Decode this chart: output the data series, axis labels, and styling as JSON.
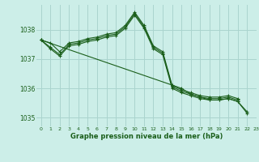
{
  "background_color": "#cceee8",
  "grid_color": "#aad4ce",
  "line_color": "#1a5e1a",
  "title": "Graphe pression niveau de la mer (hPa)",
  "xlim": [
    -0.5,
    23
  ],
  "ylim": [
    1034.7,
    1038.85
  ],
  "yticks": [
    1035,
    1036,
    1037,
    1038
  ],
  "xticks": [
    0,
    1,
    2,
    3,
    4,
    5,
    6,
    7,
    8,
    9,
    10,
    11,
    12,
    13,
    14,
    15,
    16,
    17,
    18,
    19,
    20,
    21,
    22,
    23
  ],
  "series": [
    [
      1037.65,
      1037.55,
      1037.25,
      1037.55,
      1037.6,
      1037.7,
      1037.75,
      1037.85,
      1037.9,
      1038.15,
      1038.6,
      1038.15,
      1037.45,
      1037.25,
      1036.1,
      1035.95,
      1035.85,
      1035.75,
      1035.7,
      1035.7,
      1035.75,
      1035.65,
      null,
      null
    ],
    [
      1037.65,
      1037.4,
      1037.15,
      1037.5,
      1037.55,
      1037.65,
      1037.7,
      1037.8,
      1037.85,
      1038.1,
      1038.55,
      1038.1,
      1037.4,
      1037.2,
      1036.05,
      1035.9,
      1035.8,
      1035.7,
      1035.65,
      1035.65,
      1035.7,
      1035.6,
      null,
      null
    ],
    [
      1037.65,
      1037.35,
      1037.1,
      1037.45,
      1037.5,
      1037.6,
      1037.65,
      1037.75,
      1037.8,
      1038.05,
      1038.5,
      1038.05,
      1037.35,
      1037.15,
      1036.0,
      1035.85,
      1035.75,
      1035.65,
      1035.6,
      1035.6,
      1035.65,
      1035.55,
      1035.2,
      null
    ],
    [
      1037.65,
      null,
      null,
      null,
      null,
      null,
      null,
      null,
      null,
      null,
      null,
      null,
      null,
      null,
      null,
      1036.0,
      1035.8,
      1035.7,
      1035.6,
      1035.6,
      1035.65,
      1035.55,
      1035.15,
      null
    ]
  ]
}
